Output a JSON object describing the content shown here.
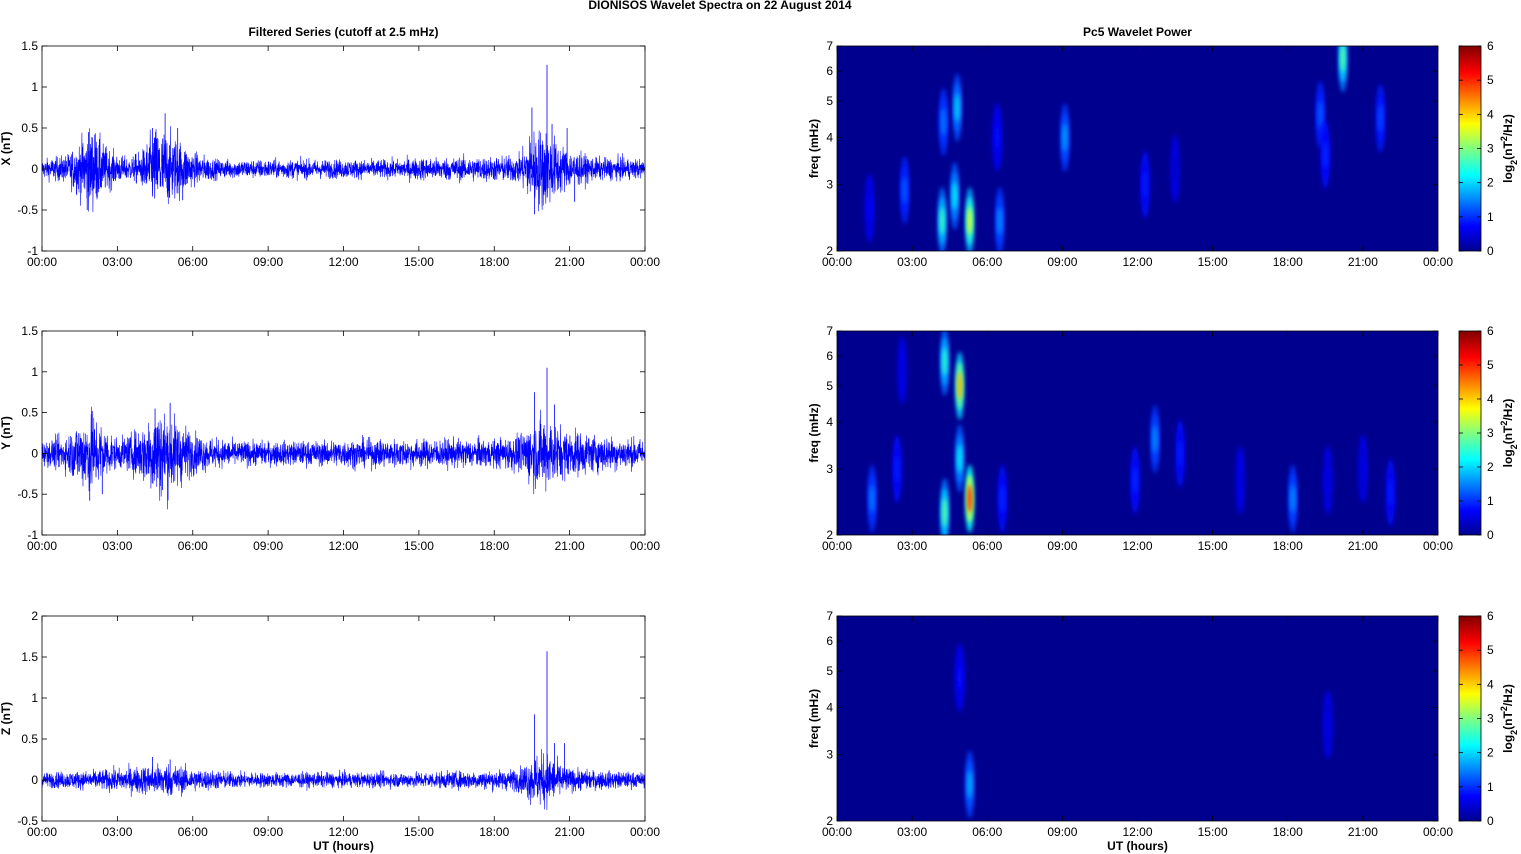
{
  "figure": {
    "title": "DIONISOS Wavelet Spectra on 22 August    2014"
  },
  "chart_data": [
    {
      "type": "line",
      "panel": "filtered-series-x",
      "title": "Filtered Series (cutoff at 2.5 mHz)",
      "xlabel": "",
      "ylabel": "X (nT)",
      "x_ticks": [
        "00:00",
        "03:00",
        "06:00",
        "09:00",
        "12:00",
        "15:00",
        "18:00",
        "21:00",
        "00:00"
      ],
      "y_ticks": [
        "-1",
        "-0.5",
        "0",
        "0.5",
        "1",
        "1.5"
      ],
      "xlim": [
        0,
        24
      ],
      "ylim": [
        -1,
        1.5
      ],
      "grid": false,
      "line_color": "#0000ff",
      "series": [
        {
          "envelope": [
            [
              0,
              0.1
            ],
            [
              1,
              0.15
            ],
            [
              1.5,
              0.3
            ],
            [
              2,
              0.45
            ],
            [
              2.5,
              0.25
            ],
            [
              3,
              0.15
            ],
            [
              3.5,
              0.12
            ],
            [
              4,
              0.2
            ],
            [
              4.5,
              0.45
            ],
            [
              5,
              0.4
            ],
            [
              5.5,
              0.3
            ],
            [
              6,
              0.18
            ],
            [
              7,
              0.1
            ],
            [
              8,
              0.1
            ],
            [
              9,
              0.1
            ],
            [
              10,
              0.1
            ],
            [
              11,
              0.1
            ],
            [
              12,
              0.1
            ],
            [
              13,
              0.1
            ],
            [
              14,
              0.1
            ],
            [
              15,
              0.12
            ],
            [
              16,
              0.12
            ],
            [
              17,
              0.13
            ],
            [
              18,
              0.13
            ],
            [
              19,
              0.15
            ],
            [
              19.5,
              0.4
            ],
            [
              20,
              0.45
            ],
            [
              20.5,
              0.3
            ],
            [
              21,
              0.2
            ],
            [
              22,
              0.12
            ],
            [
              23,
              0.12
            ],
            [
              24,
              0.1
            ]
          ],
          "spikes": [
            [
              1.8,
              -0.5
            ],
            [
              1.85,
              0.45
            ],
            [
              2.1,
              0.42
            ],
            [
              4.4,
              0.5
            ],
            [
              4.9,
              0.68
            ],
            [
              5.4,
              0.5
            ],
            [
              5.6,
              -0.38
            ],
            [
              19.5,
              0.75
            ],
            [
              19.6,
              -0.55
            ],
            [
              20.1,
              1.27
            ],
            [
              20.3,
              0.55
            ],
            [
              20.9,
              0.5
            ],
            [
              21.2,
              -0.4
            ]
          ]
        }
      ]
    },
    {
      "type": "line",
      "panel": "filtered-series-y",
      "title": "",
      "xlabel": "",
      "ylabel": "Y (nT)",
      "x_ticks": [
        "00:00",
        "03:00",
        "06:00",
        "09:00",
        "12:00",
        "15:00",
        "18:00",
        "21:00",
        "00:00"
      ],
      "y_ticks": [
        "-1",
        "-0.5",
        "0",
        "0.5",
        "1",
        "1.5"
      ],
      "xlim": [
        0,
        24
      ],
      "ylim": [
        -1,
        1.5
      ],
      "grid": false,
      "line_color": "#0000ff",
      "series": [
        {
          "envelope": [
            [
              0,
              0.12
            ],
            [
              1,
              0.2
            ],
            [
              1.5,
              0.35
            ],
            [
              2,
              0.45
            ],
            [
              2.5,
              0.28
            ],
            [
              3,
              0.15
            ],
            [
              3.5,
              0.2
            ],
            [
              4,
              0.3
            ],
            [
              4.5,
              0.5
            ],
            [
              5,
              0.45
            ],
            [
              5.5,
              0.35
            ],
            [
              6,
              0.22
            ],
            [
              7,
              0.15
            ],
            [
              8,
              0.13
            ],
            [
              9,
              0.13
            ],
            [
              10,
              0.13
            ],
            [
              11,
              0.13
            ],
            [
              12,
              0.15
            ],
            [
              13,
              0.15
            ],
            [
              14,
              0.15
            ],
            [
              15,
              0.15
            ],
            [
              16,
              0.15
            ],
            [
              17,
              0.15
            ],
            [
              18,
              0.15
            ],
            [
              19,
              0.2
            ],
            [
              19.5,
              0.35
            ],
            [
              20,
              0.4
            ],
            [
              20.5,
              0.3
            ],
            [
              21,
              0.25
            ],
            [
              22,
              0.2
            ],
            [
              23,
              0.17
            ],
            [
              24,
              0.15
            ]
          ],
          "spikes": [
            [
              1.9,
              -0.58
            ],
            [
              2.0,
              0.52
            ],
            [
              2.4,
              -0.5
            ],
            [
              4.5,
              0.55
            ],
            [
              5.1,
              0.62
            ],
            [
              4.8,
              -0.45
            ],
            [
              19.6,
              0.75
            ],
            [
              20.1,
              1.05
            ],
            [
              20.4,
              0.6
            ]
          ]
        }
      ]
    },
    {
      "type": "line",
      "panel": "filtered-series-z",
      "title": "",
      "xlabel": "UT (hours)",
      "ylabel": "Z (nT)",
      "x_ticks": [
        "00:00",
        "03:00",
        "06:00",
        "09:00",
        "12:00",
        "15:00",
        "18:00",
        "21:00",
        "00:00"
      ],
      "y_ticks": [
        "-0.5",
        "0",
        "0.5",
        "1",
        "1.5",
        "2"
      ],
      "xlim": [
        0,
        24
      ],
      "ylim": [
        -0.5,
        2
      ],
      "grid": false,
      "line_color": "#0000ff",
      "series": [
        {
          "envelope": [
            [
              0,
              0.08
            ],
            [
              2,
              0.1
            ],
            [
              3,
              0.12
            ],
            [
              4,
              0.15
            ],
            [
              5,
              0.18
            ],
            [
              6,
              0.12
            ],
            [
              8,
              0.08
            ],
            [
              10,
              0.08
            ],
            [
              12,
              0.08
            ],
            [
              14,
              0.08
            ],
            [
              16,
              0.09
            ],
            [
              18,
              0.1
            ],
            [
              19,
              0.12
            ],
            [
              19.5,
              0.25
            ],
            [
              20,
              0.3
            ],
            [
              20.5,
              0.2
            ],
            [
              21,
              0.12
            ],
            [
              22,
              0.1
            ],
            [
              24,
              0.08
            ]
          ],
          "spikes": [
            [
              4.4,
              0.28
            ],
            [
              5.1,
              0.25
            ],
            [
              19.6,
              0.8
            ],
            [
              20.1,
              1.57
            ],
            [
              20.4,
              0.45
            ],
            [
              20.8,
              0.45
            ],
            [
              20.0,
              -0.22
            ]
          ]
        }
      ]
    },
    {
      "type": "heatmap",
      "panel": "pc5-wavelet-power-x",
      "title": "Pc5 Wavelet Power",
      "xlabel": "",
      "ylabel": "freq (mHz)",
      "x_ticks": [
        "00:00",
        "03:00",
        "06:00",
        "09:00",
        "12:00",
        "15:00",
        "18:00",
        "21:00",
        "00:00"
      ],
      "y_ticks": [
        "2",
        "3",
        "4",
        "5",
        "6",
        "7"
      ],
      "xlim": [
        0,
        24
      ],
      "ylim": [
        2,
        7
      ],
      "y_scale": "log",
      "colorbar": {
        "ticks": [
          "0",
          "1",
          "2",
          "3",
          "4",
          "5",
          "6"
        ],
        "range": [
          0,
          6
        ]
      },
      "colorscale": "jet",
      "blobs": [
        {
          "t": 1.3,
          "f": 2.6,
          "value": 0.7
        },
        {
          "t": 2.7,
          "f": 2.9,
          "value": 1.3
        },
        {
          "t": 4.2,
          "f": 2.4,
          "value": 2.6
        },
        {
          "t": 4.25,
          "f": 4.4,
          "value": 1.5
        },
        {
          "t": 4.8,
          "f": 4.8,
          "value": 2.0
        },
        {
          "t": 4.7,
          "f": 2.8,
          "value": 2.2
        },
        {
          "t": 5.3,
          "f": 2.4,
          "value": 3.6
        },
        {
          "t": 6.5,
          "f": 2.4,
          "value": 1.6
        },
        {
          "t": 6.4,
          "f": 4.0,
          "value": 0.8
        },
        {
          "t": 9.1,
          "f": 4.0,
          "value": 1.7
        },
        {
          "t": 12.3,
          "f": 3.0,
          "value": 0.9
        },
        {
          "t": 13.5,
          "f": 3.3,
          "value": 0.4
        },
        {
          "t": 19.3,
          "f": 4.6,
          "value": 1.3
        },
        {
          "t": 19.5,
          "f": 3.6,
          "value": 1.0
        },
        {
          "t": 20.2,
          "f": 6.5,
          "value": 2.8
        },
        {
          "t": 21.7,
          "f": 4.5,
          "value": 1.2
        }
      ]
    },
    {
      "type": "heatmap",
      "panel": "pc5-wavelet-power-y",
      "title": "",
      "xlabel": "",
      "ylabel": "freq (mHz)",
      "x_ticks": [
        "00:00",
        "03:00",
        "06:00",
        "09:00",
        "12:00",
        "15:00",
        "18:00",
        "21:00",
        "00:00"
      ],
      "y_ticks": [
        "2",
        "3",
        "4",
        "5",
        "6",
        "7"
      ],
      "xlim": [
        0,
        24
      ],
      "ylim": [
        2,
        7
      ],
      "y_scale": "log",
      "colorbar": {
        "ticks": [
          "0",
          "1",
          "2",
          "3",
          "4",
          "5",
          "6"
        ],
        "range": [
          0,
          6
        ]
      },
      "colorscale": "jet",
      "blobs": [
        {
          "t": 1.4,
          "f": 2.5,
          "value": 1.5
        },
        {
          "t": 2.4,
          "f": 3.0,
          "value": 0.9
        },
        {
          "t": 2.6,
          "f": 5.5,
          "value": 0.5
        },
        {
          "t": 4.3,
          "f": 2.3,
          "value": 2.8
        },
        {
          "t": 4.3,
          "f": 5.8,
          "value": 2.5
        },
        {
          "t": 4.9,
          "f": 5.0,
          "value": 4.2
        },
        {
          "t": 4.9,
          "f": 3.2,
          "value": 2.2
        },
        {
          "t": 5.3,
          "f": 2.5,
          "value": 5.0
        },
        {
          "t": 6.6,
          "f": 2.5,
          "value": 1.0
        },
        {
          "t": 11.9,
          "f": 2.8,
          "value": 1.0
        },
        {
          "t": 12.7,
          "f": 3.6,
          "value": 1.6
        },
        {
          "t": 13.7,
          "f": 3.3,
          "value": 0.9
        },
        {
          "t": 16.1,
          "f": 2.8,
          "value": 0.5
        },
        {
          "t": 18.2,
          "f": 2.5,
          "value": 1.6
        },
        {
          "t": 19.6,
          "f": 2.8,
          "value": 0.6
        },
        {
          "t": 21.0,
          "f": 3.0,
          "value": 0.6
        },
        {
          "t": 22.1,
          "f": 2.6,
          "value": 0.9
        }
      ]
    },
    {
      "type": "heatmap",
      "panel": "pc5-wavelet-power-z",
      "title": "",
      "xlabel": "UT (hours)",
      "ylabel": "freq (mHz)",
      "x_ticks": [
        "00:00",
        "03:00",
        "06:00",
        "09:00",
        "12:00",
        "15:00",
        "18:00",
        "21:00",
        "00:00"
      ],
      "y_ticks": [
        "2",
        "3",
        "4",
        "5",
        "6",
        "7"
      ],
      "xlim": [
        0,
        24
      ],
      "ylim": [
        2,
        7
      ],
      "y_scale": "log",
      "colorbar": {
        "ticks": [
          "0",
          "1",
          "2",
          "3",
          "4",
          "5",
          "6"
        ],
        "range": [
          0,
          6
        ]
      },
      "colorscale": "jet",
      "blobs": [
        {
          "t": 4.9,
          "f": 4.8,
          "value": 0.8
        },
        {
          "t": 5.3,
          "f": 2.5,
          "value": 1.8
        },
        {
          "t": 19.6,
          "f": 3.6,
          "value": 0.6
        }
      ]
    }
  ]
}
